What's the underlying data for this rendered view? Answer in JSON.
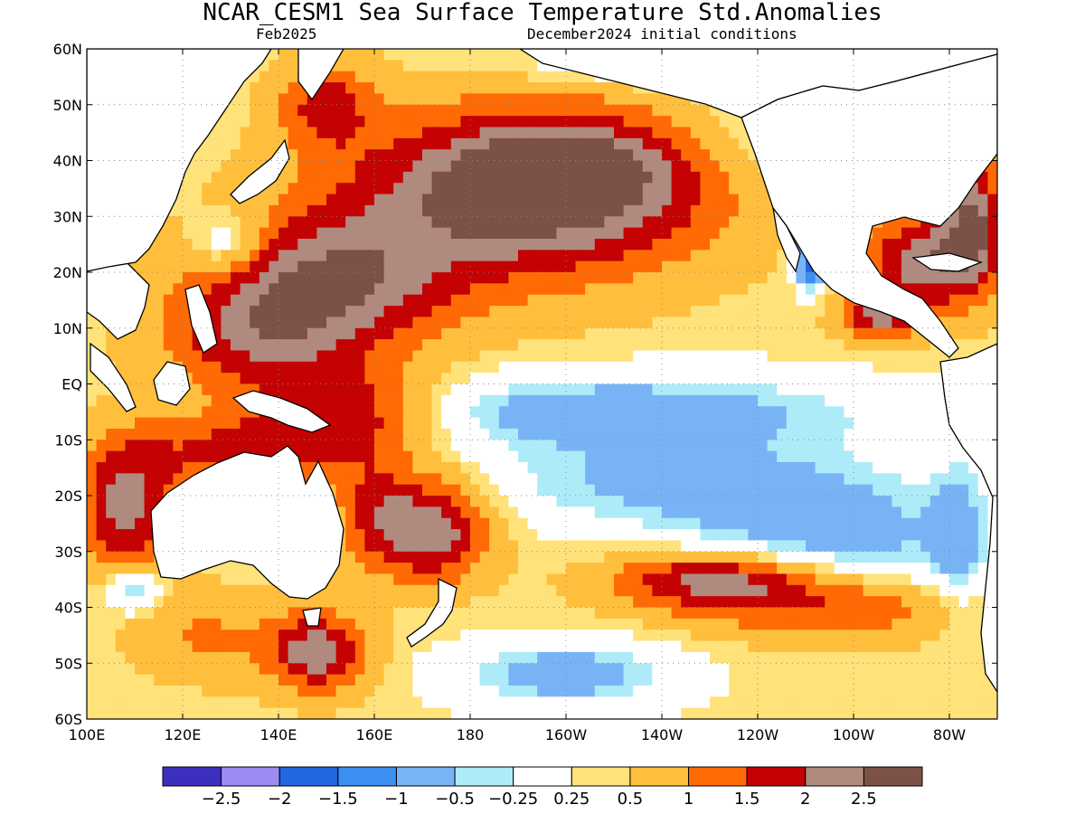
{
  "title": "NCAR_CESM1 Sea Surface Temperature Std.Anomalies",
  "valid_month": "Feb2025",
  "init_conditions": "December2024 initial conditions",
  "map": {
    "lon_range": [
      100,
      290
    ],
    "lat_range": [
      -60,
      60
    ],
    "lat_ticks": [
      {
        "lat": 60,
        "label": "60N"
      },
      {
        "lat": 50,
        "label": "50N"
      },
      {
        "lat": 40,
        "label": "40N"
      },
      {
        "lat": 30,
        "label": "30N"
      },
      {
        "lat": 20,
        "label": "20N"
      },
      {
        "lat": 10,
        "label": "10N"
      },
      {
        "lat": 0,
        "label": "EQ"
      },
      {
        "lat": -10,
        "label": "10S"
      },
      {
        "lat": -20,
        "label": "20S"
      },
      {
        "lat": -30,
        "label": "30S"
      },
      {
        "lat": -40,
        "label": "40S"
      },
      {
        "lat": -50,
        "label": "50S"
      },
      {
        "lat": -60,
        "label": "60S"
      }
    ],
    "lon_ticks": [
      {
        "lon": 100,
        "label": "100E"
      },
      {
        "lon": 120,
        "label": "120E"
      },
      {
        "lon": 140,
        "label": "140E"
      },
      {
        "lon": 160,
        "label": "160E"
      },
      {
        "lon": 180,
        "label": "180"
      },
      {
        "lon": 200,
        "label": "160W"
      },
      {
        "lon": 220,
        "label": "140W"
      },
      {
        "lon": 240,
        "label": "120W"
      },
      {
        "lon": 260,
        "label": "100W"
      },
      {
        "lon": 280,
        "label": "80W"
      }
    ],
    "grid": true,
    "levels": [
      {
        "min": -100,
        "max": -2.5,
        "color": "#3c2fbd"
      },
      {
        "min": -2.5,
        "max": -2,
        "color": "#9c8cf2"
      },
      {
        "min": -2,
        "max": -1.5,
        "color": "#2266e0"
      },
      {
        "min": -1.5,
        "max": -1,
        "color": "#3c8ff0"
      },
      {
        "min": -1,
        "max": -0.5,
        "color": "#78b4f5"
      },
      {
        "min": -0.5,
        "max": -0.25,
        "color": "#aeebf8"
      },
      {
        "min": -0.25,
        "max": 0.25,
        "color": "#ffffff"
      },
      {
        "min": 0.25,
        "max": 0.5,
        "color": "#ffe27a"
      },
      {
        "min": 0.5,
        "max": 1,
        "color": "#ffbf3c"
      },
      {
        "min": 1,
        "max": 1.5,
        "color": "#ff6a05"
      },
      {
        "min": 1.5,
        "max": 2,
        "color": "#c40203"
      },
      {
        "min": 2,
        "max": 2.5,
        "color": "#b08a7f"
      },
      {
        "min": 2.5,
        "max": 100,
        "color": "#7c5246"
      }
    ],
    "land_color": "#ffffff",
    "coast_color": "#000000",
    "anomaly_features": [
      {
        "lon": 197,
        "lat": 37,
        "rlon": 35,
        "rlat": 13,
        "amp": 2.4
      },
      {
        "lon": 200,
        "lat": 39,
        "rlon": 14,
        "rlat": 5,
        "amp": 1.0
      },
      {
        "lon": 185,
        "lat": 28,
        "rlon": 40,
        "rlat": 15,
        "amp": 0.9
      },
      {
        "lon": 150,
        "lat": 18,
        "rlon": 25,
        "rlat": 12,
        "amp": 1.9
      },
      {
        "lon": 135,
        "lat": 8,
        "rlon": 20,
        "rlat": 10,
        "amp": 1.3
      },
      {
        "lon": 155,
        "lat": -5,
        "rlon": 20,
        "rlat": 8,
        "amp": 1.6
      },
      {
        "lon": 132,
        "lat": -12,
        "rlon": 22,
        "rlat": 7,
        "amp": 1.3
      },
      {
        "lon": 108,
        "lat": -22,
        "rlon": 10,
        "rlat": 12,
        "amp": 1.8
      },
      {
        "lon": 172,
        "lat": -26,
        "rlon": 12,
        "rlat": 9,
        "amp": 2.1
      },
      {
        "lon": 160,
        "lat": -22,
        "rlon": 8,
        "rlat": 10,
        "amp": 1.0
      },
      {
        "lon": 232,
        "lat": -35,
        "rlon": 22,
        "rlat": 5,
        "amp": 1.9
      },
      {
        "lon": 255,
        "lat": -40,
        "rlon": 30,
        "rlat": 6,
        "amp": 1.3
      },
      {
        "lon": 148,
        "lat": -48,
        "rlon": 10,
        "rlat": 7,
        "amp": 2.0
      },
      {
        "lon": 125,
        "lat": -45,
        "rlon": 15,
        "rlat": 8,
        "amp": 0.7
      },
      {
        "lon": 275,
        "lat": 22,
        "rlon": 12,
        "rlat": 9,
        "amp": 2.0
      },
      {
        "lon": 285,
        "lat": 30,
        "rlon": 6,
        "rlat": 12,
        "amp": 2.0
      },
      {
        "lon": 265,
        "lat": 12,
        "rlon": 8,
        "rlat": 4,
        "amp": 1.6
      },
      {
        "lon": 150,
        "lat": 50,
        "rlon": 10,
        "rlat": 8,
        "amp": 1.3
      },
      {
        "lon": 210,
        "lat": -5,
        "rlon": 55,
        "rlat": 7,
        "amp": -1.2
      },
      {
        "lon": 220,
        "lat": -18,
        "rlon": 40,
        "rlat": 8,
        "amp": -0.9
      },
      {
        "lon": 255,
        "lat": -28,
        "rlon": 30,
        "rlat": 12,
        "amp": -1.1
      },
      {
        "lon": 282,
        "lat": -28,
        "rlon": 6,
        "rlat": 15,
        "amp": -0.8
      },
      {
        "lon": 200,
        "lat": -52,
        "rlon": 22,
        "rlat": 6,
        "amp": -1.2
      },
      {
        "lon": 248,
        "lat": 45,
        "rlon": 25,
        "rlat": 12,
        "amp": -0.6
      },
      {
        "lon": 220,
        "lat": 57,
        "rlon": 30,
        "rlat": 4,
        "amp": -0.7
      },
      {
        "lon": 130,
        "lat": 25,
        "rlon": 8,
        "rlat": 6,
        "amp": -1.0
      },
      {
        "lon": 110,
        "lat": -37,
        "rlon": 6,
        "rlat": 4,
        "amp": -1.2
      },
      {
        "lon": 251,
        "lat": 22,
        "rlon": 3,
        "rlat": 5,
        "amp": -2.3
      }
    ]
  },
  "colorbar": {
    "labels": [
      "−2.5",
      "−2",
      "−1.5",
      "−1",
      "−0.5",
      "−0.25",
      "0.25",
      "0.5",
      "1",
      "1.5",
      "2",
      "2.5"
    ]
  }
}
